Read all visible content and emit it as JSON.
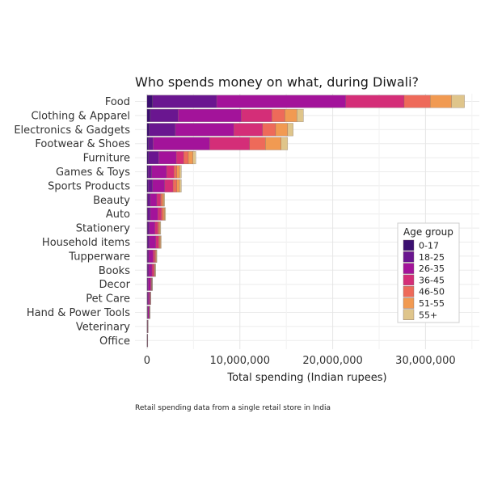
{
  "chart_data": {
    "type": "bar",
    "orientation": "horizontal",
    "stacked": true,
    "title": "Who spends money on what, during Diwali?",
    "xlabel": "Total spending (Indian rupees)",
    "ylabel": "",
    "caption": "Retail spending data from a single retail store in India",
    "xlim": [
      -1300000,
      35800000
    ],
    "x_ticks": [
      0,
      10000000,
      20000000,
      30000000
    ],
    "x_tick_labels": [
      "0",
      "10,000,000",
      "20,000,000",
      "30,000,000"
    ],
    "grid": true,
    "legend": {
      "title": "Age group",
      "placement": "right"
    },
    "categories": [
      "Food",
      "Clothing & Apparel",
      "Electronics & Gadgets",
      "Footwear & Shoes",
      "Furniture",
      "Games & Toys",
      "Sports Products",
      "Beauty",
      "Auto",
      "Stationery",
      "Household items",
      "Tupperware",
      "Books",
      "Decor",
      "Pet Care",
      "Hand & Power Tools",
      "Veterinary",
      "Office"
    ],
    "series": [
      {
        "name": "0-17",
        "color": "#3b0f70",
        "values": [
          600000,
          350000,
          250000,
          150000,
          150000,
          100000,
          100000,
          50000,
          50000,
          50000,
          50000,
          30000,
          30000,
          20000,
          20000,
          20000,
          10000,
          10000
        ]
      },
      {
        "name": "18-25",
        "color": "#6a1690",
        "values": [
          6900000,
          3000000,
          2800000,
          500000,
          1100000,
          400000,
          500000,
          300000,
          300000,
          200000,
          200000,
          150000,
          150000,
          100000,
          80000,
          60000,
          20000,
          20000
        ]
      },
      {
        "name": "26-35",
        "color": "#a3139a",
        "values": [
          13900000,
          6800000,
          6300000,
          6100000,
          1900000,
          1600000,
          1300000,
          700000,
          800000,
          600000,
          700000,
          450000,
          350000,
          250000,
          150000,
          120000,
          40000,
          30000
        ]
      },
      {
        "name": "36-45",
        "color": "#d42e78",
        "values": [
          6300000,
          3300000,
          3100000,
          4300000,
          800000,
          800000,
          900000,
          400000,
          400000,
          300000,
          300000,
          200000,
          200000,
          100000,
          80000,
          60000,
          20000,
          10000
        ]
      },
      {
        "name": "46-50",
        "color": "#ee6a5a",
        "values": [
          2800000,
          1400000,
          1400000,
          1700000,
          500000,
          300000,
          400000,
          200000,
          200000,
          150000,
          100000,
          100000,
          80000,
          50000,
          30000,
          30000,
          10000,
          5000
        ]
      },
      {
        "name": "51-55",
        "color": "#f19a52",
        "values": [
          2300000,
          1300000,
          1300000,
          1700000,
          500000,
          300000,
          300000,
          150000,
          150000,
          100000,
          100000,
          80000,
          70000,
          40000,
          30000,
          20000,
          5000,
          5000
        ]
      },
      {
        "name": "55+",
        "color": "#dfc58b",
        "values": [
          1400000,
          700000,
          600000,
          700000,
          300000,
          200000,
          200000,
          100000,
          100000,
          80000,
          80000,
          50000,
          50000,
          30000,
          20000,
          20000,
          5000,
          5000
        ]
      }
    ]
  }
}
